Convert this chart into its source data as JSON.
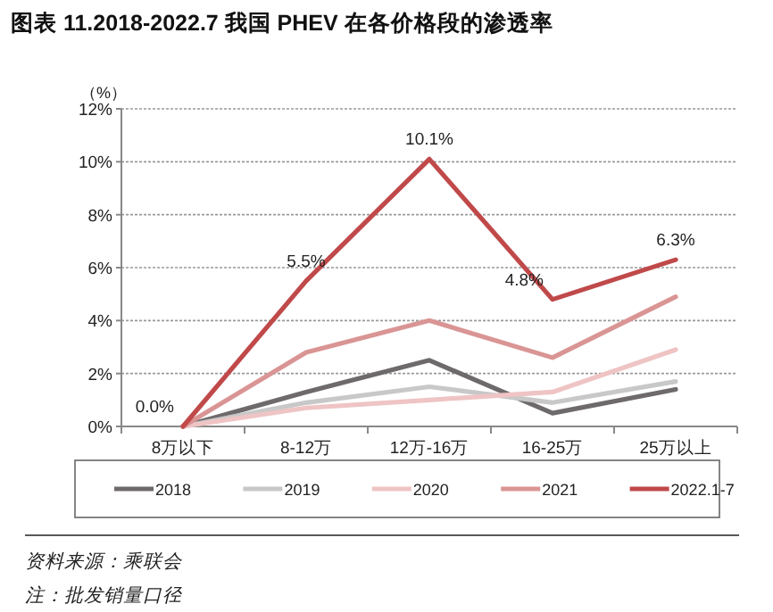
{
  "chart_data": {
    "type": "line",
    "title": "图表 11.2018-2022.7 我国 PHEV 在各价格段的渗透率",
    "ylabel": "（%）",
    "categories": [
      "8万以下",
      "8-12万",
      "12万-16万",
      "16-25万",
      "25万以上"
    ],
    "ylim": [
      0,
      12
    ],
    "yticks": [
      {
        "value": 0,
        "label": "0%"
      },
      {
        "value": 2,
        "label": "2%"
      },
      {
        "value": 4,
        "label": "4%"
      },
      {
        "value": 6,
        "label": "6%"
      },
      {
        "value": 8,
        "label": "8%"
      },
      {
        "value": 10,
        "label": "10%"
      },
      {
        "value": 12,
        "label": "12%"
      }
    ],
    "grid": "y",
    "legend": "bottom",
    "marker": "none",
    "series": [
      {
        "name": "2018",
        "color": "#6e6a6b",
        "values": [
          0,
          1.3,
          2.5,
          0.5,
          1.4
        ]
      },
      {
        "name": "2019",
        "color": "#c8c8c8",
        "values": [
          0,
          0.9,
          1.5,
          0.9,
          1.7
        ]
      },
      {
        "name": "2020",
        "color": "#efc4c4",
        "values": [
          0,
          0.7,
          1.0,
          1.3,
          2.9
        ]
      },
      {
        "name": "2021",
        "color": "#d99594",
        "values": [
          0,
          2.8,
          4.0,
          2.6,
          4.9
        ]
      },
      {
        "name": "2022.1-7",
        "color": "#c0494a",
        "values": [
          0,
          5.5,
          10.1,
          4.8,
          6.3
        ],
        "value_labels": [
          "0.0%",
          "5.5%",
          "10.1%",
          "4.8%",
          "6.3%"
        ]
      }
    ],
    "annotations": [
      "资料来源：乘联会",
      "注：批发销量口径"
    ]
  }
}
